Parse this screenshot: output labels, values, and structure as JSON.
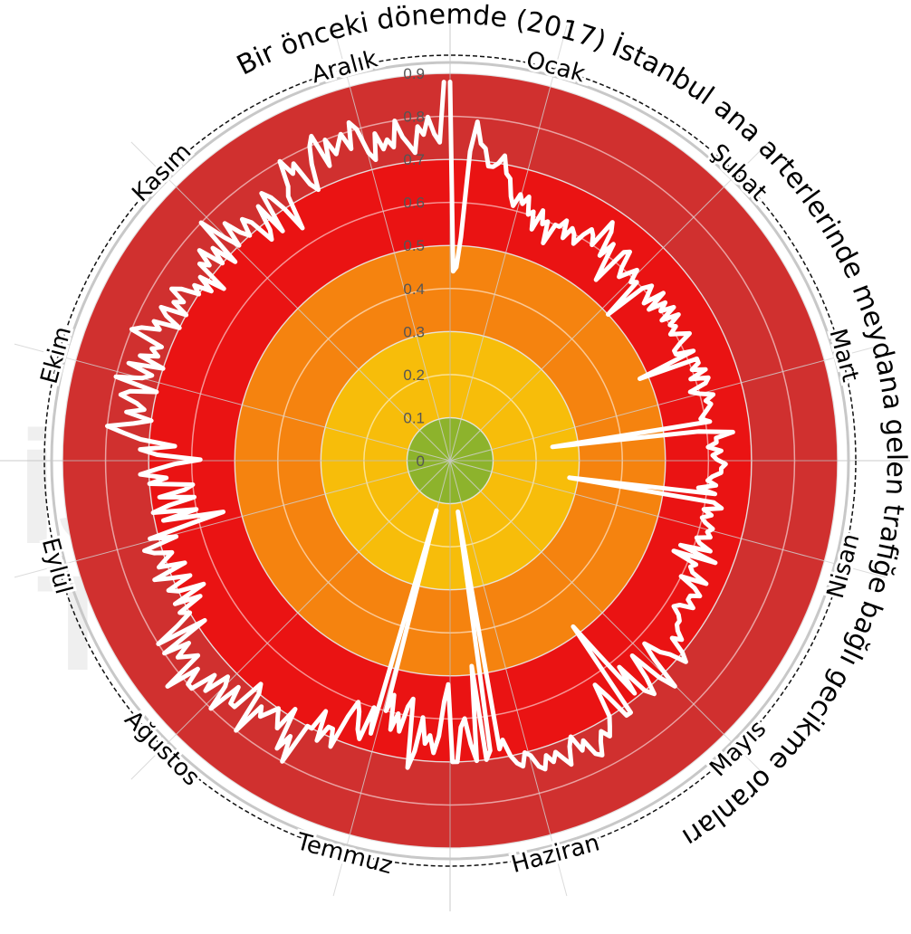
{
  "chart_data": {
    "type": "radar-line",
    "title": "Bir önceki dönemde (2017) İstanbul ana arterlerinde meydana gelen trafiğe bağlı gecikme oranları",
    "months": [
      "Ocak",
      "Şubat",
      "Mart",
      "Nisan",
      "Mayıs",
      "Haziran",
      "Temmuz",
      "Ağustos",
      "Eylül",
      "Ekim",
      "Kasım",
      "Aralık"
    ],
    "radial_ticks": [
      "0",
      "0.1",
      "0.2",
      "0.3",
      "0.4",
      "0.5",
      "0.6",
      "0.7",
      "0.8",
      "0.9"
    ],
    "rlim": [
      0,
      0.9
    ],
    "bands": [
      {
        "from": 0,
        "to": 0.1,
        "color": "#8db32c"
      },
      {
        "from": 0.1,
        "to": 0.3,
        "color": "#f7bd0a"
      },
      {
        "from": 0.3,
        "to": 0.5,
        "color": "#f5830f"
      },
      {
        "from": 0.5,
        "to": 0.7,
        "color": "#ea1313"
      },
      {
        "from": 0.7,
        "to": 0.9,
        "color": "#d0302f"
      }
    ],
    "line_color": "#ffffff",
    "series": [
      {
        "values": [
          0.88,
          0.44,
          0.45,
          0.52,
          0.72,
          0.79,
          0.74,
          0.73,
          0.69,
          0.69,
          0.7,
          0.72,
          0.68,
          0.67,
          0.63,
          0.61,
          0.64,
          0.62,
          0.64,
          0.6,
          0.61,
          0.57,
          0.62,
          0.59,
          0.6,
          0.55,
          0.6,
          0.6,
          0.62,
          0.58,
          0.61,
          0.6,
          0.58,
          0.61,
          0.63,
          0.62,
          0.6,
          0.67,
          0.65,
          0.59,
          0.63,
          0.58,
          0.54,
          0.63,
          0.64,
          0.6,
          0.58,
          0.6,
          0.62,
          0.59,
          0.6,
          0.5,
          0.6,
          0.62,
          0.6,
          0.58,
          0.63,
          0.58,
          0.62,
          0.6,
          0.63,
          0.59,
          0.63,
          0.6,
          0.61,
          0.59,
          0.61,
          0.63,
          0.6,
          0.58,
          0.58,
          0.62,
          0.48,
          0.62,
          0.62,
          0.6,
          0.63,
          0.59,
          0.63,
          0.62,
          0.58,
          0.6,
          0.63,
          0.61,
          0.62,
          0.61,
          0.6,
          0.59,
          0.61,
          0.24,
          0.58,
          0.66,
          0.62,
          0.62,
          0.6,
          0.63,
          0.61,
          0.62,
          0.64,
          0.63,
          0.63,
          0.61,
          0.6,
          0.62,
          0.58,
          0.62,
          0.28,
          0.62,
          0.64,
          0.6,
          0.62,
          0.6,
          0.61,
          0.63,
          0.62,
          0.63,
          0.6,
          0.61,
          0.64,
          0.57,
          0.66,
          0.56,
          0.62,
          0.61,
          0.62,
          0.66,
          0.6,
          0.64,
          0.66,
          0.64,
          0.64,
          0.66,
          0.63,
          0.62,
          0.64,
          0.65,
          0.65,
          0.66,
          0.68,
          0.66,
          0.7,
          0.72,
          0.68,
          0.66,
          0.62,
          0.66,
          0.74,
          0.7,
          0.62,
          0.68,
          0.72,
          0.7,
          0.62,
          0.69,
          0.57,
          0.48,
          0.72,
          0.72,
          0.66,
          0.62,
          0.7,
          0.72,
          0.74,
          0.72,
          0.74,
          0.77,
          0.76,
          0.72,
          0.74,
          0.7,
          0.72,
          0.76,
          0.74,
          0.72,
          0.74,
          0.72,
          0.75,
          0.74,
          0.71,
          0.7,
          0.73,
          0.72,
          0.7,
          0.66,
          0.68,
          0.12,
          0.68,
          0.7,
          0.48,
          0.7,
          0.66,
          0.6,
          0.62,
          0.7,
          0.7,
          0.52,
          0.56,
          0.64,
          0.68,
          0.64,
          0.66,
          0.6,
          0.68,
          0.72,
          0.56,
          0.58,
          0.64,
          0.6,
          0.64,
          0.56,
          0.6,
          0.12,
          0.66,
          0.6,
          0.68,
          0.66,
          0.62,
          0.6,
          0.64,
          0.72,
          0.68,
          0.68,
          0.72,
          0.65,
          0.7,
          0.7,
          0.8,
          0.74,
          0.78,
          0.68,
          0.74,
          0.72,
          0.7,
          0.72,
          0.74,
          0.72,
          0.8,
          0.7,
          0.68,
          0.76,
          0.76,
          0.72,
          0.8,
          0.74,
          0.72,
          0.78,
          0.74,
          0.8,
          0.8,
          0.76,
          0.84,
          0.74,
          0.76,
          0.78,
          0.74,
          0.8,
          0.68,
          0.8,
          0.74,
          0.7,
          0.72,
          0.66,
          0.72,
          0.64,
          0.7,
          0.72,
          0.66,
          0.7,
          0.74,
          0.66,
          0.72,
          0.7,
          0.68,
          0.72,
          0.74,
          0.66,
          0.72,
          0.62,
          0.54,
          0.68,
          0.6,
          0.7,
          0.66,
          0.6,
          0.68,
          0.62,
          0.6,
          0.7,
          0.66,
          0.72,
          0.68,
          0.64,
          0.58,
          0.68,
          0.72,
          0.64,
          0.72,
          0.76,
          0.8,
          0.74,
          0.7,
          0.76,
          0.72,
          0.74,
          0.78,
          0.76,
          0.7,
          0.8,
          0.74,
          0.72,
          0.78,
          0.7,
          0.76,
          0.72,
          0.74,
          0.72,
          0.8,
          0.78,
          0.74,
          0.76,
          0.7,
          0.74,
          0.76,
          0.7,
          0.74,
          0.72,
          0.76,
          0.74,
          0.7,
          0.72,
          0.68,
          0.72,
          0.66,
          0.74,
          0.72,
          0.76,
          0.7,
          0.74,
          0.68,
          0.8,
          0.74,
          0.7,
          0.76,
          0.72,
          0.7,
          0.74,
          0.72,
          0.66,
          0.68,
          0.74,
          0.66,
          0.76,
          0.74,
          0.7,
          0.64,
          0.72,
          0.74,
          0.8,
          0.76,
          0.78,
          0.72,
          0.7,
          0.76,
          0.8,
          0.82,
          0.74,
          0.8,
          0.76,
          0.78,
          0.8,
          0.76,
          0.82,
          0.8,
          0.74,
          0.72,
          0.78,
          0.74,
          0.76,
          0.74,
          0.8,
          0.76,
          0.74,
          0.72,
          0.78,
          0.76,
          0.8,
          0.76,
          0.74,
          0.88
        ]
      }
    ]
  }
}
